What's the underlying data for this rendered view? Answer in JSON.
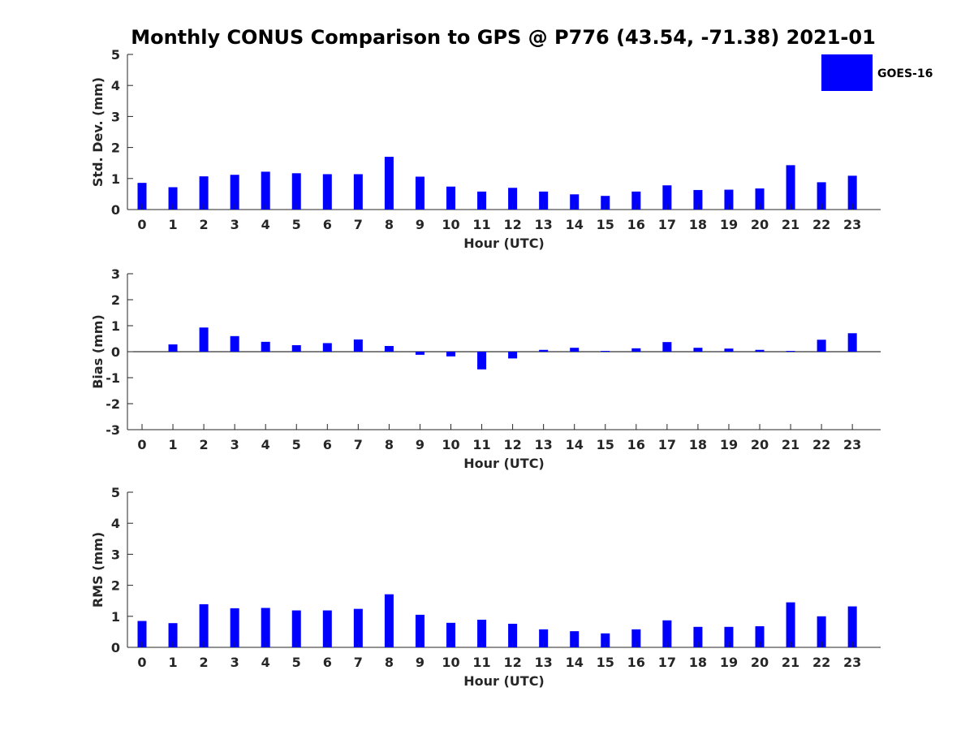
{
  "title": "Monthly CONUS Comparison to GPS @ P776 (43.54, -71.38) 2021-01",
  "colors": {
    "bar": "#0000ff",
    "axis": "#262626",
    "background": "#ffffff"
  },
  "legend": {
    "label": "GOES-16",
    "placement": "top-right"
  },
  "chart_data": [
    {
      "type": "bar",
      "title": "Monthly CONUS Comparison to GPS @ P776 (43.54, -71.38) 2021-01",
      "xlabel": "Hour (UTC)",
      "ylabel": "Std. Dev. (mm)",
      "categories": [
        "0",
        "1",
        "2",
        "3",
        "4",
        "5",
        "6",
        "7",
        "8",
        "9",
        "10",
        "11",
        "12",
        "13",
        "14",
        "15",
        "16",
        "17",
        "18",
        "19",
        "20",
        "21",
        "22",
        "23"
      ],
      "series": [
        {
          "name": "GOES-16",
          "values": [
            0.86,
            0.72,
            1.07,
            1.12,
            1.22,
            1.17,
            1.14,
            1.14,
            1.7,
            1.06,
            0.74,
            0.58,
            0.7,
            0.58,
            0.49,
            0.44,
            0.58,
            0.78,
            0.63,
            0.64,
            0.68,
            1.43,
            0.88,
            1.09
          ]
        }
      ],
      "ylim": [
        0,
        5
      ],
      "yticks": [
        0,
        1,
        2,
        3,
        4,
        5
      ]
    },
    {
      "type": "bar",
      "xlabel": "Hour (UTC)",
      "ylabel": "Bias (mm)",
      "categories": [
        "0",
        "1",
        "2",
        "3",
        "4",
        "5",
        "6",
        "7",
        "8",
        "9",
        "10",
        "11",
        "12",
        "13",
        "14",
        "15",
        "16",
        "17",
        "18",
        "19",
        "20",
        "21",
        "22",
        "23"
      ],
      "series": [
        {
          "name": "GOES-16",
          "values": [
            0.0,
            0.28,
            0.93,
            0.6,
            0.38,
            0.25,
            0.33,
            0.47,
            0.22,
            -0.12,
            -0.18,
            -0.68,
            -0.26,
            0.07,
            0.15,
            0.03,
            0.13,
            0.37,
            0.15,
            0.12,
            0.07,
            0.03,
            0.46,
            0.71
          ]
        }
      ],
      "ylim": [
        -3,
        3
      ],
      "yticks": [
        -3,
        -2,
        -1,
        0,
        1,
        2,
        3
      ]
    },
    {
      "type": "bar",
      "xlabel": "Hour (UTC)",
      "ylabel": "RMS (mm)",
      "categories": [
        "0",
        "1",
        "2",
        "3",
        "4",
        "5",
        "6",
        "7",
        "8",
        "9",
        "10",
        "11",
        "12",
        "13",
        "14",
        "15",
        "16",
        "17",
        "18",
        "19",
        "20",
        "21",
        "22",
        "23"
      ],
      "series": [
        {
          "name": "GOES-16",
          "values": [
            0.85,
            0.78,
            1.39,
            1.26,
            1.27,
            1.19,
            1.19,
            1.24,
            1.71,
            1.05,
            0.79,
            0.89,
            0.76,
            0.58,
            0.52,
            0.45,
            0.58,
            0.87,
            0.66,
            0.66,
            0.68,
            1.45,
            1.0,
            1.32
          ]
        }
      ],
      "ylim": [
        0,
        5
      ],
      "yticks": [
        0,
        1,
        2,
        3,
        4,
        5
      ]
    }
  ]
}
